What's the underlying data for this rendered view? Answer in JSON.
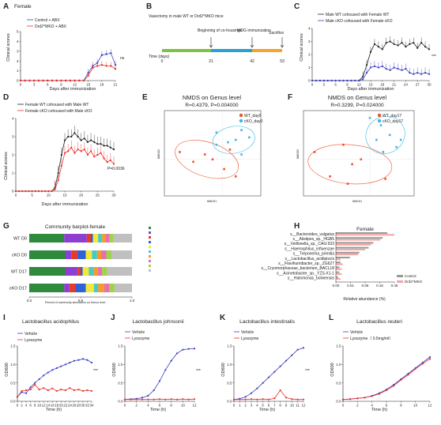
{
  "panels": {
    "A": {
      "letter": "A",
      "title": "Female",
      "xlabel": "Days after immunization",
      "ylabel": "Clinical scores",
      "legend": [
        "Control + ABX",
        "Drd2^MKO + ABX"
      ],
      "ns": "ns",
      "xticks": [
        "0",
        "3",
        "6",
        "9",
        "12",
        "15",
        "18",
        "21"
      ],
      "yticks": [
        "0",
        "1",
        "2",
        "3",
        "4",
        "5"
      ]
    },
    "B": {
      "letter": "B",
      "labels": [
        "Vasectomy in male WT or Drd2^MKO mice",
        "Beginning of co-housings",
        "MOG immunization",
        "Sacrifice"
      ],
      "time_label": "Time (days)",
      "ticks": [
        "0",
        "21",
        "42",
        "53"
      ]
    },
    "C": {
      "letter": "C",
      "xlabel": "Days after immunization",
      "ylabel": "Clinical scores",
      "legend": [
        "Male WT cohoused with Female WT",
        "Male cKO cohoused with Female cKO"
      ],
      "sig": "***",
      "xticks": [
        "0",
        "3",
        "6",
        "9",
        "12",
        "15",
        "18",
        "21",
        "24",
        "27",
        "30"
      ],
      "yticks": [
        "0",
        "1",
        "2",
        "3",
        "4"
      ]
    },
    "D": {
      "letter": "D",
      "xlabel": "Days after immunization",
      "ylabel": "Clinical scores",
      "legend": [
        "Female WT cohoused with Male WT",
        "Female cKO cohoused with Male cKO"
      ],
      "pval": "P=0.0036",
      "xticks": [
        "0",
        "5",
        "10",
        "15",
        "20",
        "25",
        "30"
      ],
      "yticks": [
        "0",
        "1",
        "2",
        "3",
        "4"
      ]
    },
    "E": {
      "letter": "E",
      "title": "NMDS on Genus level",
      "stat": "R=0.4379, P=0.004000",
      "legend": [
        "WT_day0",
        "cKO_day0"
      ],
      "xlabel": "NMDS1",
      "ylabel": "NMDS2"
    },
    "F": {
      "letter": "F",
      "title": "NMDS on Genus level",
      "stat": "R=0.3299, P=0.024000",
      "legend": [
        "WT_day17",
        "cKO_day17"
      ],
      "xlabel": "NMDS1",
      "ylabel": "NMDS2"
    },
    "G": {
      "letter": "G",
      "title": "Community barplot-female",
      "rows": [
        "WT D0",
        "cKO D0",
        "WT D17",
        "cKO D17"
      ],
      "xlabel": "Percent of community abundance on Genus level",
      "xticks": [
        "0.0",
        "0.5",
        "1.0"
      ]
    },
    "H": {
      "letter": "H",
      "title": "Female",
      "taxa": [
        "s__Bacteroides_vulgatus",
        "s__Alistipes_sp._HGB5",
        "s__Veillonella_sp._CAG:933",
        "s__Haemophilus_influenzae",
        "s__Treponema_primitia",
        "s__Lactobacillus_acidipiscis",
        "s__Flavihumibacter_sp._ZG627",
        "s__Cryomorphaceae_bacterium_BACL18",
        "s__Acinetobacter_sp._YZS-X1-1",
        "s__Halomonas_boliviensis"
      ],
      "legend": [
        "Control",
        "Drd2^MKO"
      ],
      "xlabel": "Relative abundance (%)",
      "xticks": [
        "0.00",
        "0.01",
        "0.05",
        "0.15",
        "0.45"
      ]
    },
    "I": {
      "letter": "I",
      "title": "Lactobacillus acidophilus",
      "xlabel": "Time (h)",
      "ylabel": "OD600",
      "legend": [
        "Vehicle",
        "Lysozyme"
      ],
      "sig": "***",
      "xticks": [
        "0",
        "2",
        "4",
        "6",
        "8",
        "10",
        "12",
        "14",
        "16",
        "18",
        "20",
        "22",
        "24",
        "26",
        "28",
        "30",
        "32",
        "34"
      ],
      "yticks": [
        "0.0",
        "0.5",
        "1.0",
        "1.5"
      ]
    },
    "J": {
      "letter": "J",
      "title": "Lactobacillus johnsonii",
      "xlabel": "Time (h)",
      "ylabel": "OD600",
      "legend": [
        "Vehicle",
        "Lysozyme"
      ],
      "sig": "***",
      "xticks": [
        "0",
        "2",
        "4",
        "6",
        "8",
        "10",
        "12"
      ],
      "yticks": [
        "0.0",
        "0.5",
        "1.0",
        "1.5"
      ]
    },
    "K": {
      "letter": "K",
      "title": "Lactobacillus intestinalis",
      "xlabel": "Time (h)",
      "ylabel": "OD600",
      "legend": [
        "Vehicle",
        "Lysozyme"
      ],
      "sig": "***",
      "xticks": [
        "0",
        "1",
        "2",
        "3",
        "4",
        "5",
        "6",
        "7",
        "8",
        "9",
        "10",
        "11",
        "12"
      ],
      "yticks": [
        "0.0",
        "0.5",
        "1.0",
        "1.5"
      ]
    },
    "L": {
      "letter": "L",
      "title": "Lactobacillus reuteri",
      "xlabel": "Time (h)",
      "ylabel": "OD600",
      "legend": [
        "Vehicle",
        "Lysozyme（ 0.5mg/ml）"
      ],
      "xticks": [
        "0",
        "2",
        "4",
        "6",
        "8",
        "10",
        "12"
      ],
      "yticks": [
        "0.0",
        "0.5",
        "1.0",
        "1.5"
      ]
    }
  },
  "colors": {
    "black": "#222222",
    "red": "#e8312a",
    "blue": "#3a3fc4",
    "grey": "#999999",
    "pink": "#f3a3a3"
  },
  "chart_data": [
    {
      "panel": "A",
      "type": "line",
      "xlabel": "Days after immunization",
      "ylabel": "Clinical scores",
      "ylim": [
        0,
        5
      ],
      "x": [
        0,
        1,
        2,
        3,
        4,
        5,
        6,
        7,
        8,
        9,
        10,
        11,
        12,
        13,
        14,
        15,
        16,
        17,
        18,
        19,
        20,
        21
      ],
      "series": [
        {
          "name": "Control + ABX",
          "values": [
            0,
            0,
            0,
            0,
            0,
            0,
            0,
            0,
            0,
            0,
            0,
            0,
            0,
            0,
            0,
            0.8,
            1.5,
            1.8,
            2.6,
            2.7,
            2.8,
            1.6
          ]
        },
        {
          "name": "Drd2^MKO + ABX",
          "values": [
            0,
            0,
            0,
            0,
            0,
            0,
            0,
            0,
            0,
            0,
            0,
            0,
            0,
            0,
            0,
            0.5,
            1.3,
            1.5,
            1.6,
            1.5,
            1.5,
            1.2
          ]
        }
      ]
    },
    {
      "panel": "C",
      "type": "line",
      "xlabel": "Days after immunization",
      "ylabel": "Clinical scores",
      "ylim": [
        0,
        4
      ],
      "x": [
        0,
        1,
        2,
        3,
        4,
        5,
        6,
        7,
        8,
        9,
        10,
        11,
        12,
        13,
        14,
        15,
        16,
        17,
        18,
        19,
        20,
        21,
        22,
        23,
        24,
        25,
        26,
        27,
        28,
        29,
        30
      ],
      "series": [
        {
          "name": "Male WT cohoused with Female WT",
          "values": [
            0,
            0,
            0,
            0,
            0,
            0,
            0,
            0,
            0,
            0,
            0,
            0,
            0,
            0.3,
            1.2,
            2.2,
            2.8,
            2.6,
            2.4,
            2.9,
            3.0,
            2.8,
            2.7,
            2.9,
            2.6,
            2.8,
            2.9,
            2.5,
            2.9,
            2.6,
            2.4
          ]
        },
        {
          "name": "Male cKO cohoused with Female cKO",
          "values": [
            0,
            0,
            0,
            0,
            0,
            0,
            0,
            0,
            0,
            0,
            0,
            0,
            0,
            0.1,
            0.6,
            1.0,
            1.1,
            1.0,
            1.1,
            0.9,
            0.8,
            1.0,
            0.9,
            0.8,
            0.9,
            0.6,
            0.5,
            0.6,
            0.5,
            0.6,
            0.5
          ]
        }
      ]
    },
    {
      "panel": "D",
      "type": "line",
      "xlabel": "Days after immunization",
      "ylabel": "Clinical scores",
      "ylim": [
        0,
        4
      ],
      "x": [
        0,
        1,
        2,
        3,
        4,
        5,
        6,
        7,
        8,
        9,
        10,
        11,
        12,
        13,
        14,
        15,
        16,
        17,
        18,
        19,
        20,
        21,
        22,
        23,
        24,
        25,
        26,
        27,
        28,
        29,
        30
      ],
      "series": [
        {
          "name": "Female WT cohoused with Male WT",
          "values": [
            0,
            0,
            0,
            0,
            0,
            0,
            0,
            0,
            0,
            0,
            0,
            0,
            0.2,
            1.0,
            2.0,
            2.8,
            3.0,
            3.0,
            3.2,
            3.0,
            2.8,
            2.9,
            2.7,
            2.8,
            2.7,
            2.6,
            2.6,
            2.5,
            2.5,
            2.4,
            2.3
          ]
        },
        {
          "name": "Female cKO cohoused with Male cKO",
          "values": [
            0,
            0,
            0,
            0,
            0,
            0,
            0,
            0,
            0,
            0,
            0,
            0,
            0.1,
            0.6,
            1.4,
            2.1,
            2.2,
            2.4,
            2.1,
            2.3,
            2.2,
            2.3,
            2.0,
            2.2,
            1.9,
            2.0,
            2.1,
            1.8,
            1.6,
            1.7,
            1.5
          ]
        }
      ]
    },
    {
      "panel": "E",
      "type": "scatter",
      "xlabel": "NMDS1",
      "ylabel": "NMDS2",
      "series": [
        {
          "name": "WT_day0",
          "points": [
            [
              -0.22,
              0.03
            ],
            [
              -0.15,
              -0.01
            ],
            [
              -0.09,
              0.02
            ],
            [
              -0.05,
              0.0
            ],
            [
              0.01,
              -0.04
            ],
            [
              0.07,
              -0.07
            ],
            [
              0.04,
              0.04
            ]
          ]
        },
        {
          "name": "cKO_day0",
          "points": [
            [
              -0.03,
              0.11
            ],
            [
              0.03,
              0.07
            ],
            [
              0.07,
              0.08
            ],
            [
              0.1,
              0.12
            ],
            [
              0.14,
              0.09
            ],
            [
              0.1,
              0.02
            ],
            [
              -0.03,
              0.06
            ]
          ]
        }
      ]
    },
    {
      "panel": "F",
      "type": "scatter",
      "xlabel": "NMDS1",
      "ylabel": "NMDS2",
      "series": [
        {
          "name": "WT_day17",
          "points": [
            [
              -0.25,
              0.03
            ],
            [
              -0.18,
              -0.07
            ],
            [
              -0.12,
              0.06
            ],
            [
              -0.08,
              -0.02
            ],
            [
              -0.04,
              0.0
            ],
            [
              -0.1,
              -0.1
            ],
            [
              0.07,
              -0.08
            ]
          ]
        },
        {
          "name": "cKO_day17",
          "points": [
            [
              0.0,
              0.17
            ],
            [
              0.05,
              0.14
            ],
            [
              0.09,
              0.1
            ],
            [
              0.12,
              0.05
            ],
            [
              0.14,
              0.08
            ],
            [
              0.06,
              0.03
            ],
            [
              0.03,
              0.08
            ]
          ]
        }
      ]
    },
    {
      "panel": "G",
      "type": "bar",
      "categories": [
        "WT D0",
        "cKO D0",
        "WT D17",
        "cKO D17"
      ],
      "segments": [
        {
          "color": "#2e8b3e",
          "values": [
            0.34,
            0.35,
            0.35,
            0.34
          ]
        },
        {
          "color": "#8d3fd1",
          "values": [
            0.22,
            0.06,
            0.12,
            0.05
          ]
        },
        {
          "color": "#e33b2e",
          "values": [
            0.04,
            0.06,
            0.03,
            0.06
          ]
        },
        {
          "color": "#2f62d6",
          "values": [
            0.02,
            0.08,
            0.02,
            0.1
          ]
        },
        {
          "color": "#f2e83c",
          "values": [
            0.05,
            0.06,
            0.06,
            0.08
          ]
        },
        {
          "color": "#4ec7c2",
          "values": [
            0.04,
            0.05,
            0.05,
            0.04
          ]
        },
        {
          "color": "#f39c2a",
          "values": [
            0.03,
            0.04,
            0.04,
            0.06
          ]
        },
        {
          "color": "#e86fb0",
          "values": [
            0.04,
            0.05,
            0.04,
            0.05
          ]
        },
        {
          "color": "#9ed34a",
          "values": [
            0.04,
            0.05,
            0.05,
            0.05
          ]
        },
        {
          "color": "#c0c0c0",
          "values": [
            0.18,
            0.2,
            0.24,
            0.17
          ]
        }
      ]
    },
    {
      "panel": "H",
      "type": "bar",
      "orientation": "horizontal",
      "categories": [
        "s__Bacteroides_vulgatus",
        "s__Alistipes_sp._HGB5",
        "s__Veillonella_sp._CAG:933",
        "s__Haemophilus_influenzae",
        "s__Treponema_primitia",
        "s__Lactobacillus_acidipiscis",
        "s__Flavihumibacter_sp._ZG627",
        "s__Cryomorphaceae_bacterium_BACL18",
        "s__Acinetobacter_sp._YZS-X1-1",
        "s__Halomonas_boliviensis"
      ],
      "series": [
        {
          "name": "Control",
          "values": [
            0.44,
            0.4,
            0.32,
            0.28,
            0.2,
            0.12,
            0.04,
            0.03,
            0.03,
            0.02
          ]
        },
        {
          "name": "Drd2^MKO",
          "values": [
            0.5,
            0.38,
            0.3,
            0.25,
            0.19,
            0.04,
            0.06,
            0.05,
            0.05,
            0.04
          ]
        }
      ]
    },
    {
      "panel": "I",
      "type": "line",
      "xlabel": "Time (h)",
      "ylabel": "OD600",
      "ylim": [
        0,
        1.5
      ],
      "x": [
        0,
        2,
        4,
        6,
        8,
        10,
        12,
        14,
        16,
        18,
        20,
        22,
        24,
        26,
        28,
        30,
        32,
        34
      ],
      "series": [
        {
          "name": "Vehicle",
          "values": [
            0.12,
            0.25,
            0.22,
            0.38,
            0.5,
            0.6,
            0.7,
            0.78,
            0.85,
            0.9,
            0.95,
            1.0,
            1.05,
            1.1,
            1.12,
            1.15,
            1.12,
            1.05
          ]
        },
        {
          "name": "Lysozyme",
          "values": [
            0.12,
            0.28,
            0.3,
            0.32,
            0.45,
            0.32,
            0.36,
            0.3,
            0.35,
            0.28,
            0.32,
            0.3,
            0.36,
            0.3,
            0.32,
            0.28,
            0.3,
            0.28
          ]
        }
      ]
    },
    {
      "panel": "J",
      "type": "line",
      "xlabel": "Time (h)",
      "ylabel": "OD600",
      "ylim": [
        0,
        1.5
      ],
      "x": [
        0,
        1,
        2,
        3,
        4,
        5,
        6,
        7,
        8,
        9,
        10,
        11,
        12
      ],
      "series": [
        {
          "name": "Vehicle",
          "values": [
            0.05,
            0.06,
            0.07,
            0.1,
            0.15,
            0.3,
            0.55,
            0.85,
            1.1,
            1.3,
            1.4,
            1.42,
            1.43
          ]
        },
        {
          "name": "Lysozyme",
          "values": [
            0.05,
            0.05,
            0.05,
            0.05,
            0.05,
            0.05,
            0.06,
            0.05,
            0.06,
            0.05,
            0.06,
            0.05,
            0.06
          ]
        }
      ]
    },
    {
      "panel": "K",
      "type": "line",
      "xlabel": "Time (h)",
      "ylabel": "OD600",
      "ylim": [
        0,
        1.5
      ],
      "x": [
        0,
        1,
        2,
        3,
        4,
        5,
        6,
        7,
        8,
        9,
        10,
        11,
        12
      ],
      "series": [
        {
          "name": "Vehicle",
          "values": [
            0.05,
            0.07,
            0.12,
            0.22,
            0.35,
            0.5,
            0.65,
            0.8,
            0.95,
            1.1,
            1.25,
            1.4,
            1.45
          ]
        },
        {
          "name": "Lysozyme",
          "values": [
            0.05,
            0.05,
            0.05,
            0.06,
            0.05,
            0.06,
            0.05,
            0.08,
            0.3,
            0.1,
            0.06,
            0.05,
            0.05
          ]
        }
      ]
    },
    {
      "panel": "L",
      "type": "line",
      "xlabel": "Time (h)",
      "ylabel": "OD600",
      "ylim": [
        0,
        1.5
      ],
      "x": [
        0,
        1,
        2,
        3,
        4,
        5,
        6,
        7,
        8,
        9,
        10,
        11,
        12
      ],
      "series": [
        {
          "name": "Vehicle",
          "values": [
            0.05,
            0.06,
            0.08,
            0.1,
            0.15,
            0.22,
            0.32,
            0.45,
            0.6,
            0.75,
            0.9,
            1.05,
            1.2
          ]
        },
        {
          "name": "Lysozyme（ 0.5mg/ml）",
          "values": [
            0.05,
            0.06,
            0.08,
            0.1,
            0.14,
            0.2,
            0.3,
            0.42,
            0.58,
            0.72,
            0.88,
            1.02,
            1.15
          ]
        }
      ]
    }
  ]
}
